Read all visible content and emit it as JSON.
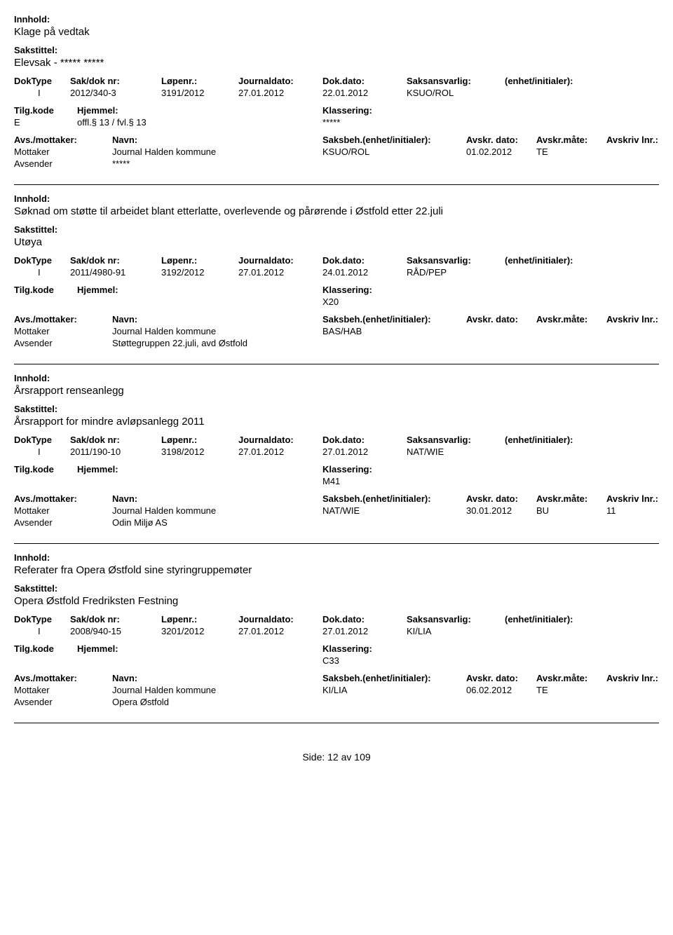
{
  "labels": {
    "innhold": "Innhold:",
    "sakstittel": "Sakstittel:",
    "doktype": "DokType",
    "sakdok": "Sak/dok nr:",
    "lopenr": "Løpenr.:",
    "journaldato": "Journaldato:",
    "dokdato": "Dok.dato:",
    "saksansvarlig": "Saksansvarlig:",
    "enhet": "(enhet/initialer):",
    "tilgkode": "Tilg.kode",
    "hjemmel": "Hjemmel:",
    "klassering": "Klassering:",
    "avsmot": "Avs./mottaker:",
    "navn": "Navn:",
    "saksbeh": "Saksbeh.(enhet/initialer):",
    "avskrdato": "Avskr. dato:",
    "avskrmate": "Avskr.måte:",
    "avskrivlnr": "Avskriv lnr.:",
    "mottaker": "Mottaker",
    "avsender": "Avsender"
  },
  "entries": [
    {
      "innhold": "Klage på vedtak",
      "sakstittel": "Elevsak - ***** *****",
      "doktype": "I",
      "sakdok": "2012/340-3",
      "lopenr": "3191/2012",
      "journaldato": "27.01.2012",
      "dokdato": "22.01.2012",
      "saksansvarlig": "KSUO/ROL",
      "tilgkode": "E",
      "hjemmel": "offl.§ 13 / fvl.§ 13",
      "klassering": "*****",
      "mottaker_navn": "Journal Halden kommune",
      "saksbeh": "KSUO/ROL",
      "avskrdato": "01.02.2012",
      "avskrmate": "TE",
      "avskrivlnr": "",
      "avsender_navn": "*****"
    },
    {
      "innhold": "Søknad om støtte til arbeidet blant etterlatte, overlevende og pårørende i Østfold etter 22.juli",
      "sakstittel": "Utøya",
      "doktype": "I",
      "sakdok": "2011/4980-91",
      "lopenr": "3192/2012",
      "journaldato": "27.01.2012",
      "dokdato": "24.01.2012",
      "saksansvarlig": "RÅD/PEP",
      "tilgkode": "",
      "hjemmel": "",
      "klassering": "X20",
      "mottaker_navn": "Journal Halden kommune",
      "saksbeh": "BAS/HAB",
      "avskrdato": "",
      "avskrmate": "",
      "avskrivlnr": "",
      "avsender_navn": "Støttegruppen 22.juli, avd Østfold"
    },
    {
      "innhold": "Årsrapport renseanlegg",
      "sakstittel": "Årsrapport for mindre avløpsanlegg 2011",
      "doktype": "I",
      "sakdok": "2011/190-10",
      "lopenr": "3198/2012",
      "journaldato": "27.01.2012",
      "dokdato": "27.01.2012",
      "saksansvarlig": "NAT/WIE",
      "tilgkode": "",
      "hjemmel": "",
      "klassering": "M41",
      "mottaker_navn": "Journal Halden kommune",
      "saksbeh": "NAT/WIE",
      "avskrdato": "30.01.2012",
      "avskrmate": "BU",
      "avskrivlnr": "11",
      "avsender_navn": "Odin Miljø AS"
    },
    {
      "innhold": "Referater fra Opera Østfold sine styringruppemøter",
      "sakstittel": "Opera Østfold Fredriksten Festning",
      "doktype": "I",
      "sakdok": "2008/940-15",
      "lopenr": "3201/2012",
      "journaldato": "27.01.2012",
      "dokdato": "27.01.2012",
      "saksansvarlig": "KI/LIA",
      "tilgkode": "",
      "hjemmel": "",
      "klassering": "C33",
      "mottaker_navn": "Journal Halden kommune",
      "saksbeh": "KI/LIA",
      "avskrdato": "06.02.2012",
      "avskrmate": "TE",
      "avskrivlnr": "",
      "avsender_navn": "Opera Østfold"
    }
  ],
  "footer": {
    "side": "Side:",
    "page": "12",
    "av": "av",
    "total": "109"
  }
}
